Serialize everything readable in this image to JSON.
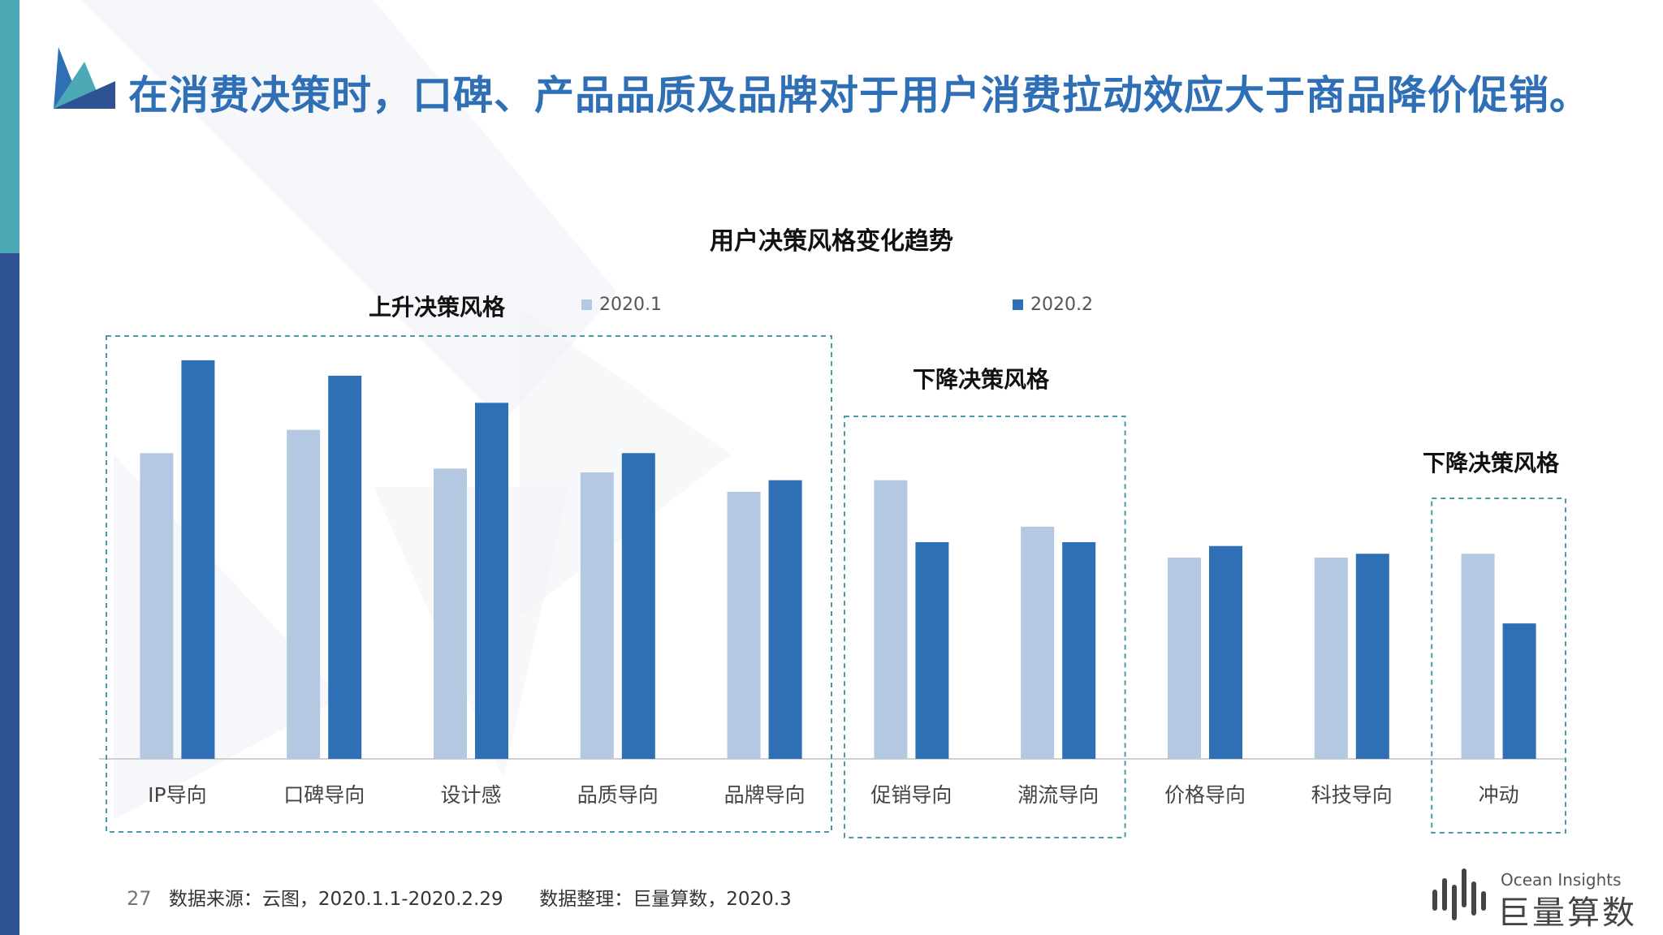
{
  "header": {
    "title": "在消费决策时，口碑、产品品质及品牌对于用户消费拉动效应大于商品降价促销。"
  },
  "colors": {
    "series_light": "#B4C8E1",
    "series_dark": "#2E6FB5",
    "headline": "#2E6FB5",
    "accent_teal": "#4BA9B6",
    "accent_navy": "#2E5293",
    "group_border": "#4A9BA8"
  },
  "chart_data": {
    "type": "bar",
    "title": "用户决策风格变化趋势",
    "categories": [
      "IP导向",
      "口碑导向",
      "设计感",
      "品质导向",
      "品牌导向",
      "促销导向",
      "潮流导向",
      "价格导向",
      "科技导向",
      "冲动"
    ],
    "series": [
      {
        "name": "2020.1",
        "values": [
          39.5,
          42.5,
          37.5,
          37.0,
          34.5,
          36.0,
          30.0,
          26.0,
          26.0,
          26.5
        ]
      },
      {
        "name": "2020.2",
        "values": [
          51.5,
          49.5,
          46.0,
          39.5,
          36.0,
          28.0,
          28.0,
          27.5,
          26.5,
          17.5
        ]
      }
    ],
    "ylim": [
      0,
      54
    ],
    "grid": false,
    "legend": "top",
    "groups": [
      {
        "label": "上升决策风格",
        "from": 0,
        "to": 4
      },
      {
        "label": "下降决策风格",
        "from": 5,
        "to": 6
      },
      {
        "label": "下降决策风格",
        "from": 9,
        "to": 9
      }
    ]
  },
  "footer": {
    "page_number": "27",
    "source": "数据来源：云图，2020.1.1-2020.2.29",
    "compiled_by": "数据整理：巨量算数，2020.3"
  },
  "brand": {
    "name_en": "Ocean Insights",
    "name_cn": "巨量算数"
  }
}
